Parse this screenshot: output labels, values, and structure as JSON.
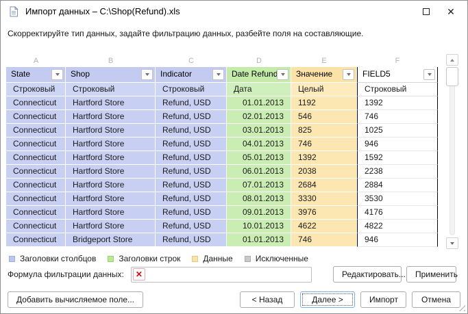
{
  "colors": {
    "blue-header": "#c3ccf0",
    "blue-type": "#cdd5f4",
    "blue-cell": "#c7cff2",
    "green-header": "#c4eba9",
    "green-type": "#cff0bd",
    "green-cell": "#caedb3",
    "tan-header": "#fbe2a6",
    "tan-type": "#fdeabd",
    "tan-cell": "#fce7b2",
    "focus-border": "#7ab0df"
  },
  "window": {
    "title": "Импорт данных – C:\\Shop(Refund).xls",
    "close_glyph": "✕"
  },
  "instruction": "Скорректируйте тип данных, задайте фильтрацию данных, разбейте поля на составляющие.",
  "table": {
    "columns": [
      {
        "letter": "A",
        "name": "State",
        "type": "Строковый",
        "role": "column-header",
        "align": "left"
      },
      {
        "letter": "B",
        "name": "Shop",
        "type": "Строковый",
        "role": "column-header",
        "align": "left"
      },
      {
        "letter": "C",
        "name": "Indicator",
        "type": "Строковый",
        "role": "column-header",
        "align": "left"
      },
      {
        "letter": "D",
        "name": "Date Refund",
        "type": "Дата",
        "role": "row-header",
        "align": "right"
      },
      {
        "letter": "E",
        "name": "Значение",
        "type": "Целый",
        "role": "data",
        "align": "left"
      },
      {
        "letter": "F",
        "name": "FIELD5",
        "type": "Строковый",
        "role": "none",
        "align": "left"
      }
    ],
    "rows": [
      [
        "Connecticut",
        "Hartford Store",
        "Refund, USD",
        "01.01.2013",
        "1192",
        "1392"
      ],
      [
        "Connecticut",
        "Hartford Store",
        "Refund, USD",
        "02.01.2013",
        "546",
        "746"
      ],
      [
        "Connecticut",
        "Hartford Store",
        "Refund, USD",
        "03.01.2013",
        "825",
        "1025"
      ],
      [
        "Connecticut",
        "Hartford Store",
        "Refund, USD",
        "04.01.2013",
        "746",
        "946"
      ],
      [
        "Connecticut",
        "Hartford Store",
        "Refund, USD",
        "05.01.2013",
        "1392",
        "1592"
      ],
      [
        "Connecticut",
        "Hartford Store",
        "Refund, USD",
        "06.01.2013",
        "2038",
        "2238"
      ],
      [
        "Connecticut",
        "Hartford Store",
        "Refund, USD",
        "07.01.2013",
        "2684",
        "2884"
      ],
      [
        "Connecticut",
        "Hartford Store",
        "Refund, USD",
        "08.01.2013",
        "3330",
        "3530"
      ],
      [
        "Connecticut",
        "Hartford Store",
        "Refund, USD",
        "09.01.2013",
        "3976",
        "4176"
      ],
      [
        "Connecticut",
        "Hartford Store",
        "Refund, USD",
        "10.01.2013",
        "4622",
        "4822"
      ],
      [
        "Connecticut",
        "Bridgeport Store",
        "Refund, USD",
        "01.01.2013",
        "746",
        "946"
      ]
    ]
  },
  "legend": {
    "items": [
      {
        "label": "Заголовки столбцов",
        "color": "#bac6ed",
        "border": "#9fb0e0"
      },
      {
        "label": "Заголовки строк",
        "color": "#b9e897",
        "border": "#97d36c"
      },
      {
        "label": "Данные",
        "color": "#fbe3a8",
        "border": "#e6c87f"
      },
      {
        "label": "Исключенные",
        "color": "#c9c9c9",
        "border": "#ababab"
      }
    ]
  },
  "filter": {
    "label": "Формула фильтрации данных:",
    "clear_glyph": "✕",
    "value": "",
    "edit_button": "Редактировать...",
    "apply_button": "Применить"
  },
  "footer": {
    "add_field_button": "Добавить вычисляемое поле...",
    "back_button": "< Назад",
    "next_button": "Далее >",
    "import_button": "Импорт",
    "cancel_button": "Отмена"
  }
}
